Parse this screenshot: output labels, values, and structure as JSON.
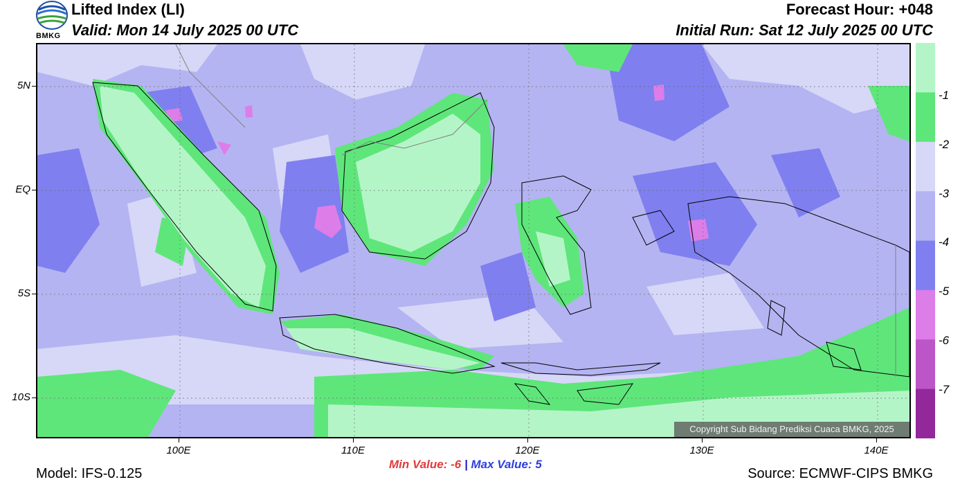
{
  "header": {
    "title": "Lifted Index (LI)",
    "valid": "Valid: Mon 14 July 2025 00 UTC",
    "forecast_hour": "Forecast Hour: +048",
    "initial_run": "Initial Run: Sat 12 July 2025 00 UTC",
    "logo_text": "BMKG"
  },
  "map": {
    "lat_labels": [
      "5N",
      "EQ",
      "5S",
      "10S"
    ],
    "lon_labels": [
      "100E",
      "110E",
      "120E",
      "130E",
      "140E"
    ],
    "copyright": "Copyright Sub Bidang Prediksi Cuaca BMKG, 2025"
  },
  "legend": {
    "labels": [
      "-1",
      "-2",
      "-3",
      "-4",
      "-5",
      "-6",
      "-7"
    ],
    "colors": [
      "#b4f5c8",
      "#5ee67a",
      "#d7d7f7",
      "#b4b4f2",
      "#7f7ff0",
      "#dd7de8",
      "#bb55c8",
      "#92289a"
    ]
  },
  "stats": {
    "min_label": "Min Value:  -6",
    "separator": "|",
    "max_label": "Max Value:   5"
  },
  "footer": {
    "model": "Model: IFS-0.125",
    "source": "Source: ECMWF-CIPS BMKG"
  }
}
